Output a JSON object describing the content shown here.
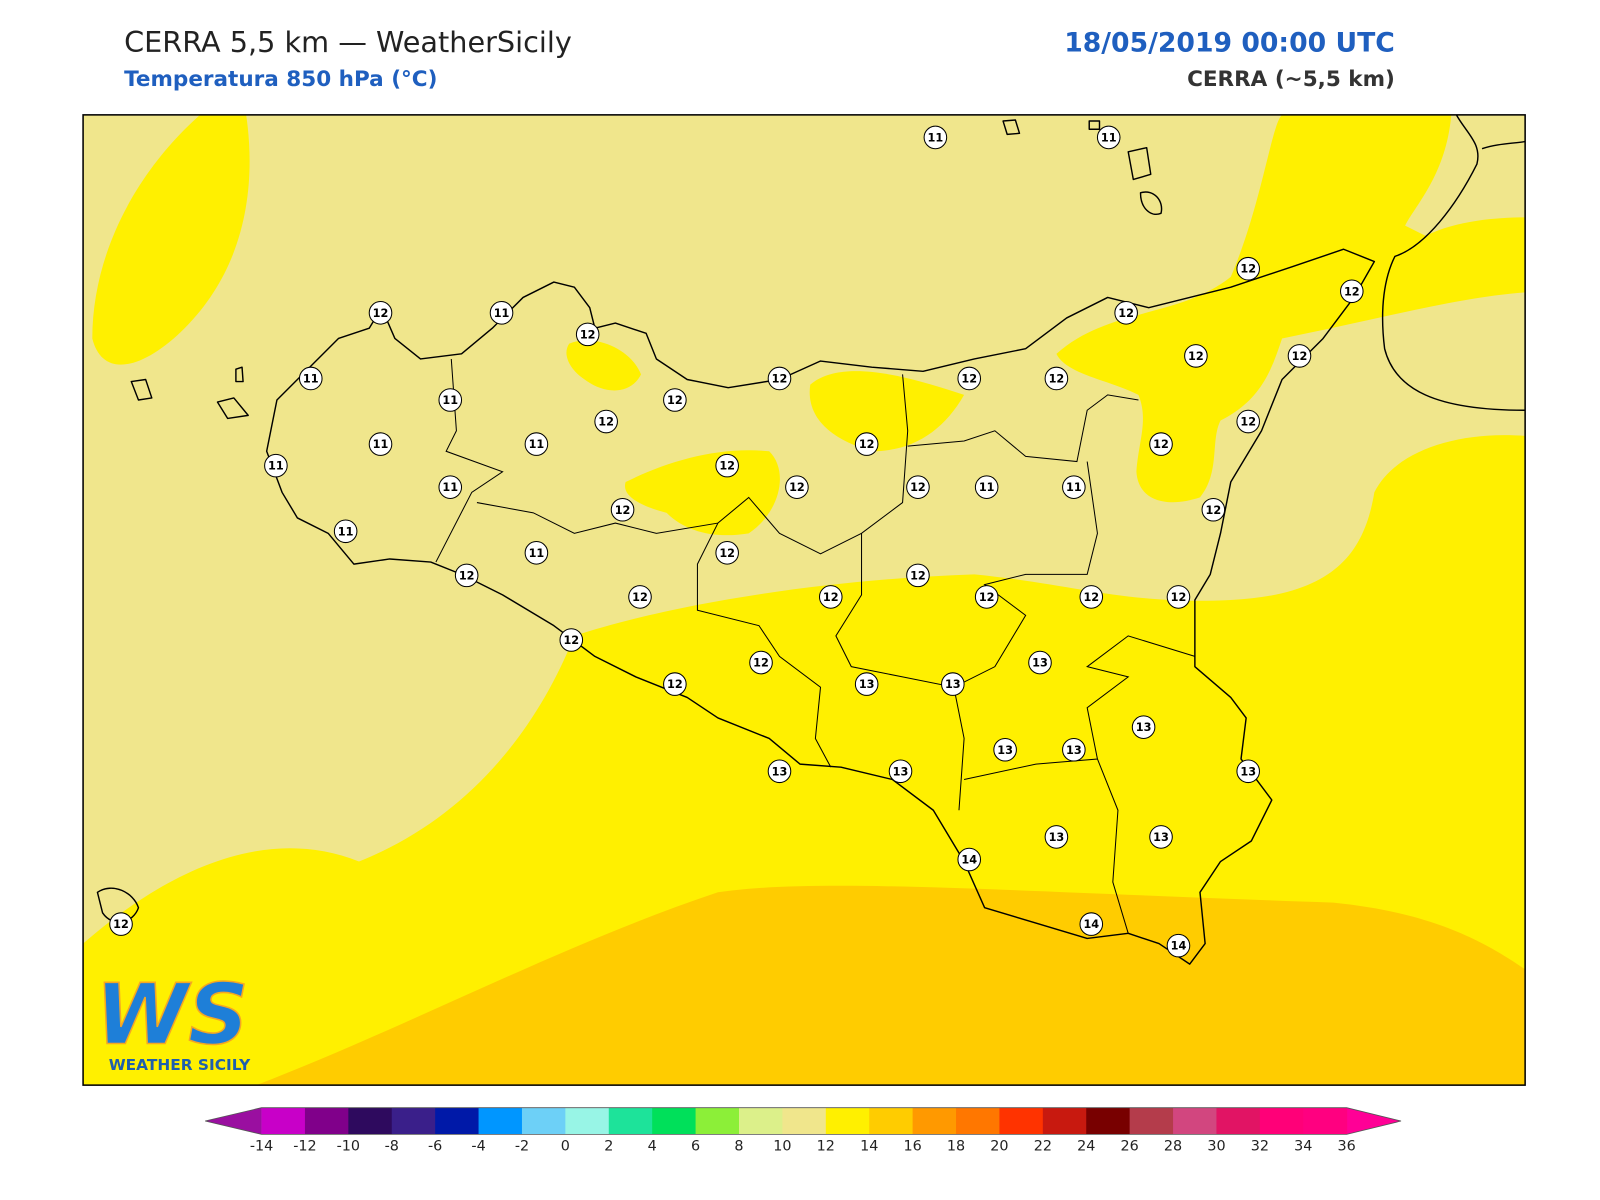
{
  "header": {
    "title": "CERRA 5,5 km — WeatherSicily",
    "subtitle": "Temperatura 850 hPa (°C)",
    "valid_time": "18/05/2019 00:00 UTC",
    "model": "CERRA (~5,5 km)"
  },
  "map": {
    "stations": [
      11,
      11,
      12,
      11,
      12,
      12,
      12,
      12,
      11,
      11,
      12,
      12,
      12,
      12,
      12,
      12,
      12,
      12,
      11,
      11,
      11,
      12,
      12,
      12,
      11,
      12,
      12,
      11,
      11,
      12,
      12,
      11,
      11,
      12,
      12,
      12,
      12,
      12,
      12,
      12,
      12,
      12,
      12,
      13,
      12,
      13,
      13,
      13,
      13,
      13,
      13,
      13,
      13,
      14,
      13,
      13,
      14,
      14,
      12
    ]
  },
  "colorbar": {
    "ticks": [
      -14,
      -12,
      -10,
      -8,
      -6,
      -4,
      -2,
      0,
      2,
      4,
      6,
      8,
      10,
      12,
      14,
      16,
      18,
      20,
      22,
      24,
      26,
      28,
      30,
      32,
      34,
      36
    ],
    "colors": [
      "#c800c8",
      "#80008a",
      "#2e0a5e",
      "#3a1f8a",
      "#0019a8",
      "#0096ff",
      "#6dd0f7",
      "#98f5e6",
      "#1de39a",
      "#00e05a",
      "#8cef38",
      "#dcf08a",
      "#f0e68c",
      "#fff000",
      "#ffcc00",
      "#ff9900",
      "#ff7700",
      "#ff3300",
      "#c8190f",
      "#780000",
      "#b43c4b",
      "#d2467f",
      "#e11464",
      "#ff0078",
      "#ff0080"
    ],
    "under": "#9a0fa0",
    "over": "#ff0096"
  },
  "logo": {
    "text": "WS",
    "caption": "WEATHER SICILY"
  }
}
